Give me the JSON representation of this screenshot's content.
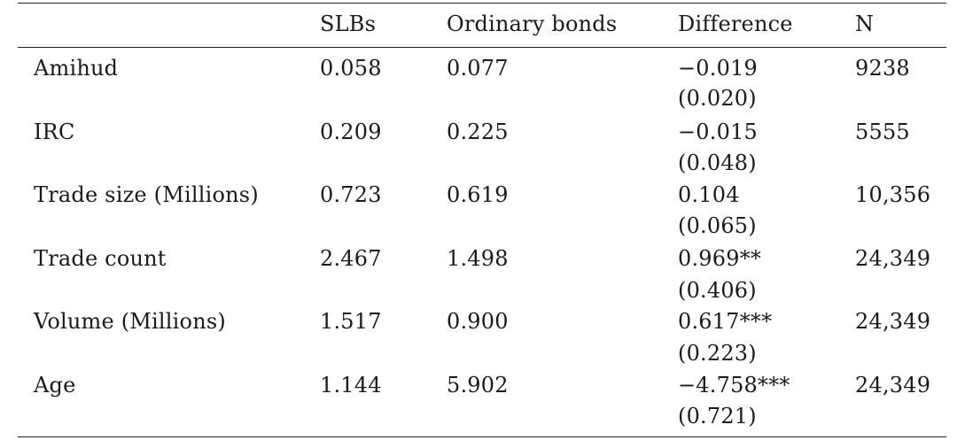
{
  "table": {
    "headers": [
      "",
      "SLBs",
      "Ordinary bonds",
      "Difference",
      "N"
    ],
    "rows": [
      {
        "label": "Amihud",
        "slbs": "0.058",
        "ordinary": "0.077",
        "difference": "−0.019",
        "se": "(0.020)",
        "n": "9238"
      },
      {
        "label": "IRC",
        "slbs": "0.209",
        "ordinary": "0.225",
        "difference": "−0.015",
        "se": "(0.048)",
        "n": "5555"
      },
      {
        "label": "Trade size (Millions)",
        "slbs": "0.723",
        "ordinary": "0.619",
        "difference": "0.104",
        "se": "(0.065)",
        "n": "10,356"
      },
      {
        "label": "Trade count",
        "slbs": "2.467",
        "ordinary": "1.498",
        "difference": "0.969**",
        "se": "(0.406)",
        "n": "24,349"
      },
      {
        "label": "Volume (Millions)",
        "slbs": "1.517",
        "ordinary": "0.900",
        "difference": "0.617***",
        "se": "(0.223)",
        "n": "24,349"
      },
      {
        "label": "Age",
        "slbs": "1.144",
        "ordinary": "5.902",
        "difference": "−4.758***",
        "se": "(0.721)",
        "n": "24,349"
      }
    ]
  }
}
